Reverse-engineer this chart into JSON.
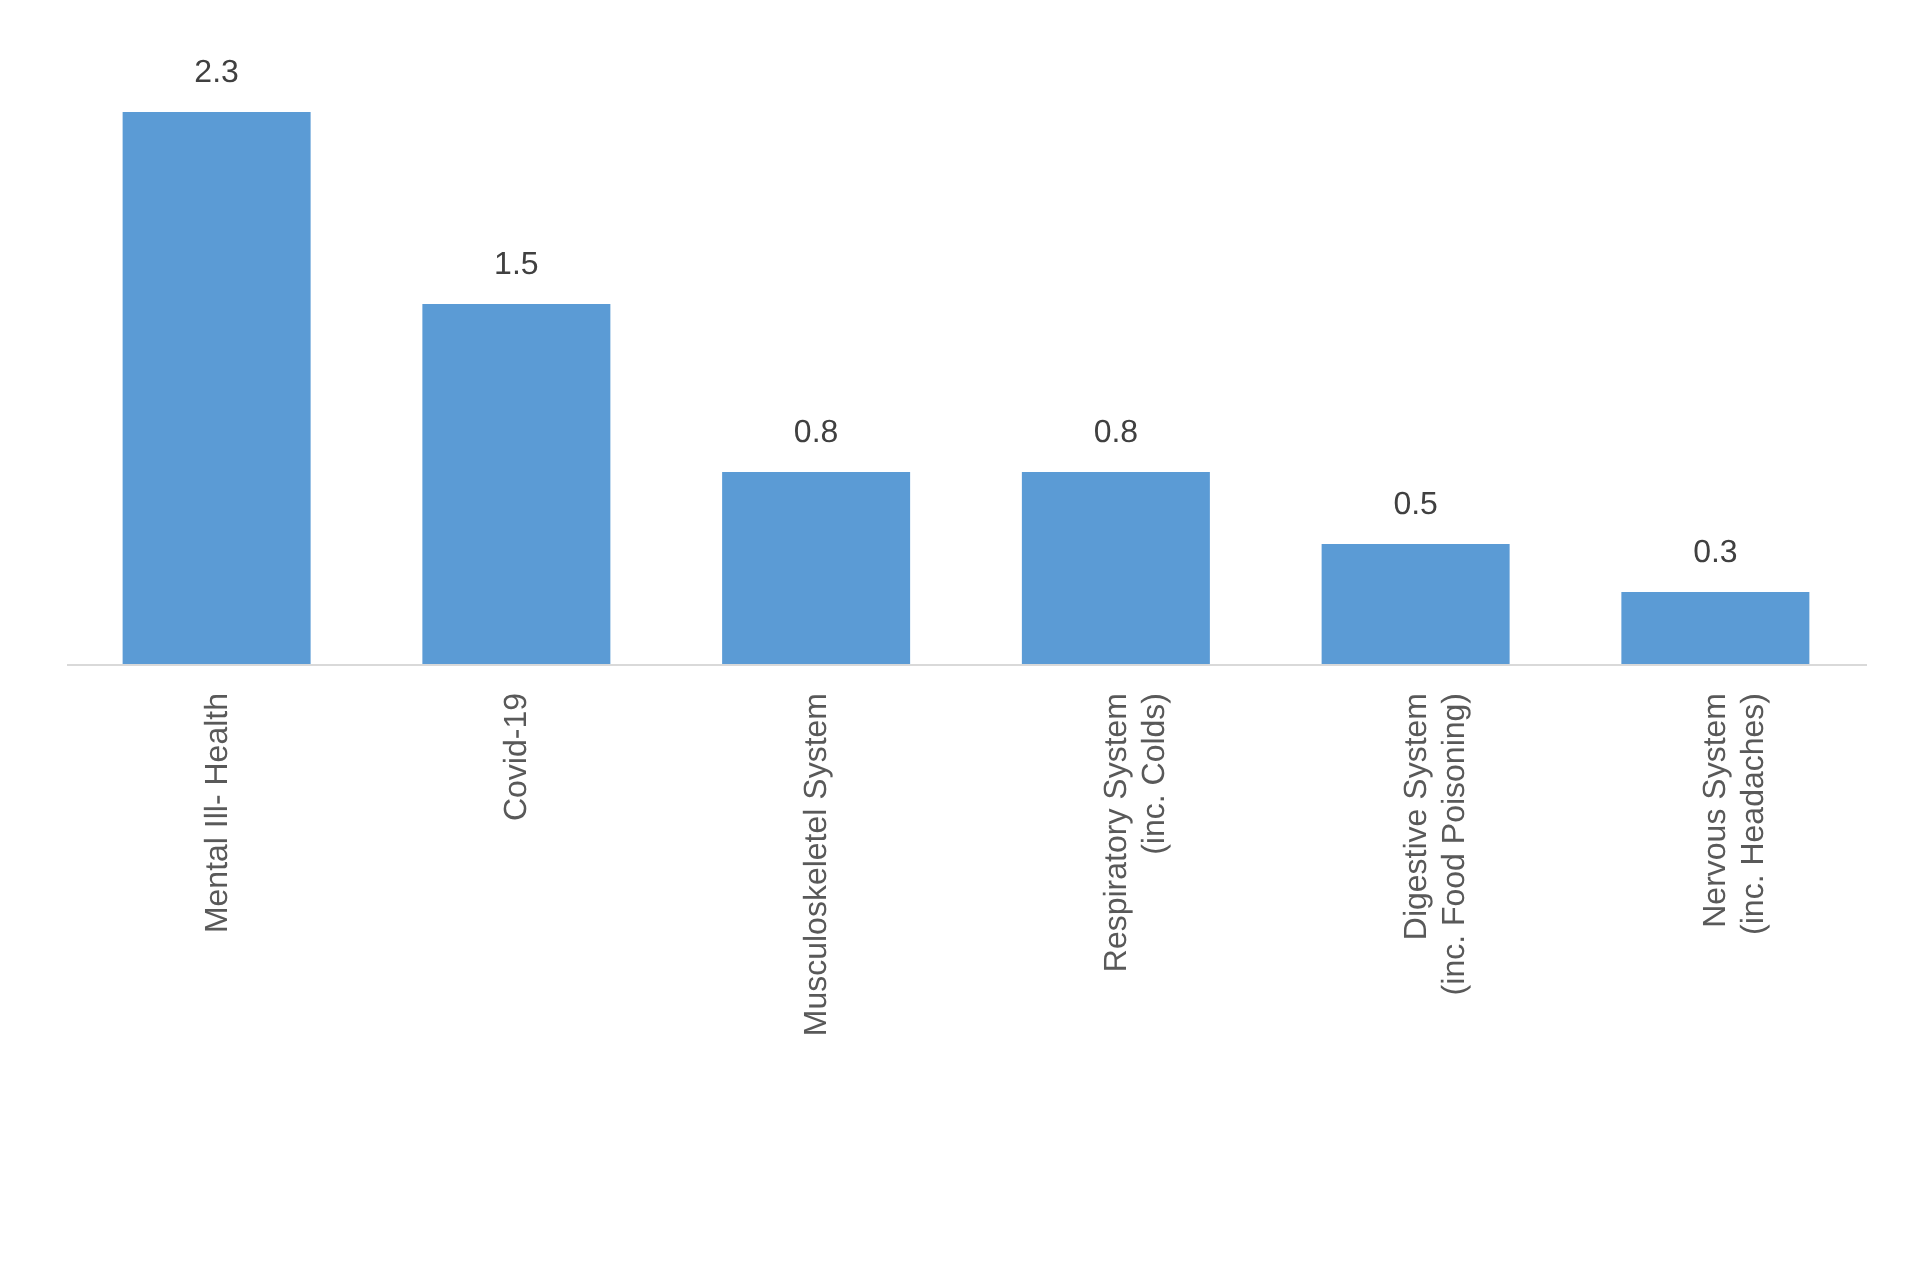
{
  "chart_data": {
    "type": "bar",
    "categories": [
      "Mental Ill- Health",
      "Covid-19",
      "Musculoskeletel System",
      "Respiratory System\n(inc. Colds)",
      "Digestive System\n(inc. Food Poisoning)",
      "Nervous System\n(inc. Headaches)"
    ],
    "values": [
      2.3,
      1.5,
      0.8,
      0.8,
      0.5,
      0.3
    ],
    "color": "#5b9bd5",
    "data_labels": true,
    "tick_labels": "x"
  }
}
